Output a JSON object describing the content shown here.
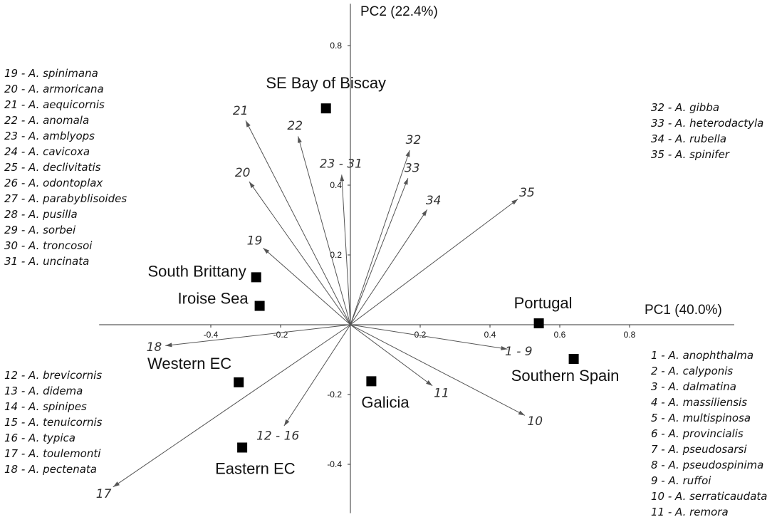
{
  "chart_data": {
    "type": "scatter",
    "subtype": "pca-biplot",
    "xlabel": "PC1 (40.0%)",
    "ylabel": "PC2 (22.4%)",
    "xlim": [
      -0.72,
      1.1
    ],
    "ylim": [
      -0.54,
      0.92
    ],
    "x_ticks": [
      -0.4,
      -0.2,
      0.2,
      0.4,
      0.6,
      0.8
    ],
    "x_tick_labels": [
      "-0.4",
      "-0.2",
      "0.2",
      "0.4",
      "0.6",
      "0.8"
    ],
    "y_ticks": [
      0.8,
      0.4,
      0.2,
      -0.2,
      -0.4
    ],
    "y_tick_labels": [
      "0.8",
      "0.4",
      "0.2",
      "-0.2",
      "-0.4"
    ],
    "grid": false,
    "sites": [
      {
        "label": "SE Bay of Biscay",
        "x": -0.07,
        "y": 0.62
      },
      {
        "label": "South Brittany",
        "x": -0.27,
        "y": 0.136
      },
      {
        "label": "Iroise Sea",
        "x": -0.26,
        "y": 0.054
      },
      {
        "label": "Portugal",
        "x": 0.54,
        "y": 0.004
      },
      {
        "label": "Southern Spain",
        "x": 0.64,
        "y": -0.098
      },
      {
        "label": "Western EC",
        "x": -0.32,
        "y": -0.165
      },
      {
        "label": "Galicia",
        "x": 0.06,
        "y": -0.162
      },
      {
        "label": "Eastern EC",
        "x": -0.31,
        "y": -0.352
      }
    ],
    "vectors": [
      {
        "label": "21",
        "x": -0.3,
        "y": 0.585
      },
      {
        "label": "22",
        "x": -0.15,
        "y": 0.54
      },
      {
        "label": "23 - 31",
        "x": -0.025,
        "y": 0.43
      },
      {
        "label": "32",
        "x": 0.17,
        "y": 0.5
      },
      {
        "label": "33",
        "x": 0.165,
        "y": 0.42
      },
      {
        "label": "34",
        "x": 0.22,
        "y": 0.33
      },
      {
        "label": "35",
        "x": 0.48,
        "y": 0.36
      },
      {
        "label": "20",
        "x": -0.29,
        "y": 0.41
      },
      {
        "label": "19",
        "x": -0.25,
        "y": 0.22
      },
      {
        "label": "18",
        "x": -0.53,
        "y": -0.06
      },
      {
        "label": "1 - 9",
        "x": 0.45,
        "y": -0.07
      },
      {
        "label": "11",
        "x": 0.235,
        "y": -0.175
      },
      {
        "label": "10",
        "x": 0.5,
        "y": -0.26
      },
      {
        "label": "12 - 16",
        "x": -0.19,
        "y": -0.29
      },
      {
        "label": "17",
        "x": -0.68,
        "y": -0.465
      }
    ],
    "legend_groups": [
      {
        "position": "top-left",
        "items": [
          "19 - A. spinimana",
          "20 - A. armoricana",
          "21 - A. aequicornis",
          "22 - A. anomala",
          "23 - A. amblyops",
          "24 - A. cavicoxa",
          "25 - A. declivitatis",
          "26 - A. odontoplax",
          "27 - A. parabyblisoides",
          "28 - A. pusilla",
          "29 - A. sorbei",
          "30 - A. troncosoi",
          "31 - A. uncinata"
        ]
      },
      {
        "position": "top-right",
        "items": [
          "32 - A. gibba",
          "33 - A. heterodactyla",
          "34 - A. rubella",
          "35 - A. spinifer"
        ]
      },
      {
        "position": "bottom-left",
        "items": [
          "12 - A. brevicornis",
          "13 - A. didema",
          "14 - A. spinipes",
          "15 - A. tenuicornis",
          "16 - A. typica",
          "17 - A. toulemonti",
          "18 - A. pectenata"
        ]
      },
      {
        "position": "bottom-right",
        "items": [
          "1 - A. anophthalma",
          "2 - A. calyponis",
          "3 - A. dalmatina",
          "4 - A. massiliensis",
          "5 - A. multispinosa",
          "6 - A. provincialis",
          "7 - A. pseudosarsi",
          "8 - A. pseudospinima",
          "9 - A. ruffoi",
          "10 - A. serraticaudata",
          "11 - A. remora"
        ]
      }
    ],
    "colors": {
      "marker": "#000000",
      "vector": "#555555",
      "axis": "#333333"
    }
  }
}
